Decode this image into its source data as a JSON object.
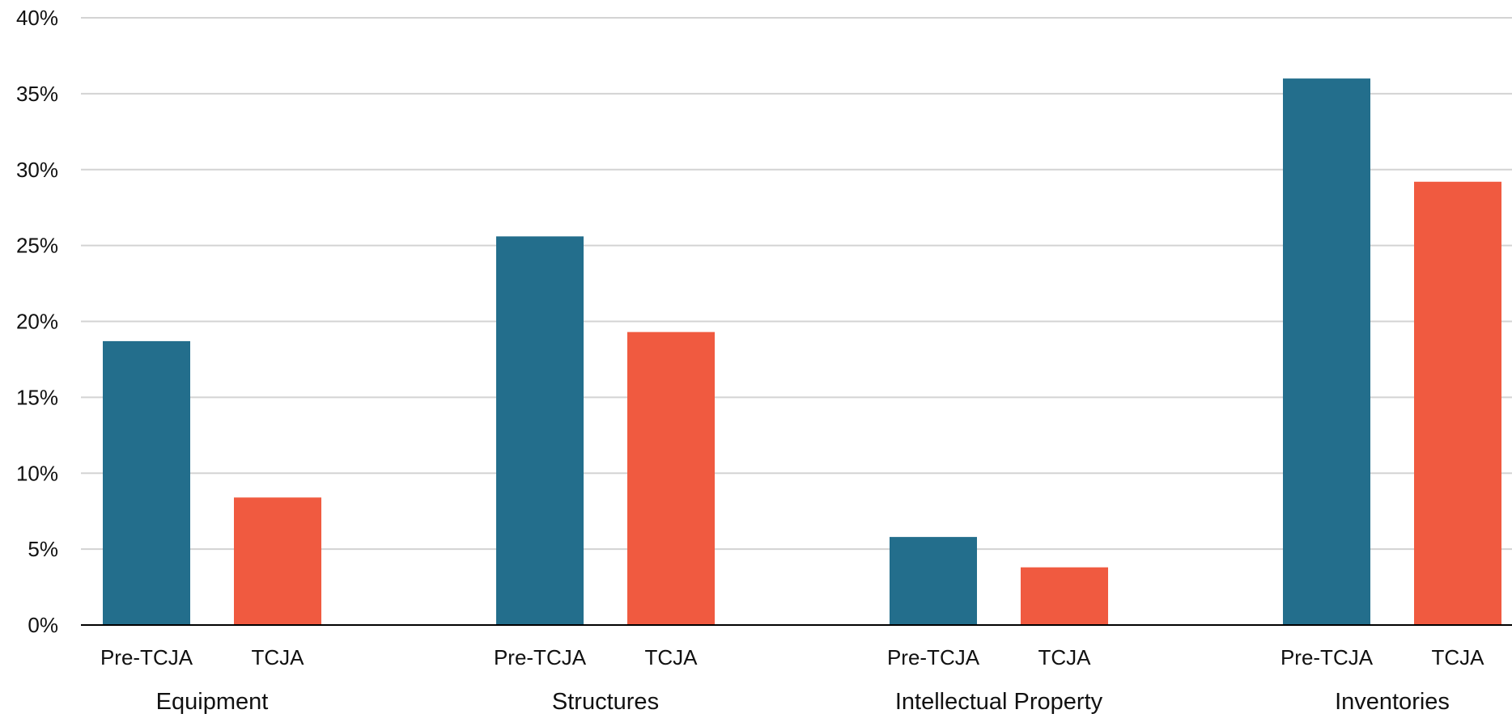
{
  "chart_data": {
    "type": "bar",
    "title": "",
    "xlabel": "",
    "ylabel": "",
    "ylim": [
      0,
      40
    ],
    "y_ticks": [
      0,
      5,
      10,
      15,
      20,
      25,
      30,
      35,
      40
    ],
    "y_tick_format": "percent",
    "grid": true,
    "legend": "none",
    "categories": [
      "Equipment",
      "Structures",
      "Intellectual Property",
      "Inventories"
    ],
    "series": [
      {
        "label": "Pre-TCJA",
        "color": "#236e8c",
        "values": [
          18.7,
          25.6,
          5.8,
          36.0
        ]
      },
      {
        "label": "TCJA",
        "color": "#f05a40",
        "values": [
          8.4,
          19.3,
          3.8,
          29.2
        ]
      }
    ]
  }
}
